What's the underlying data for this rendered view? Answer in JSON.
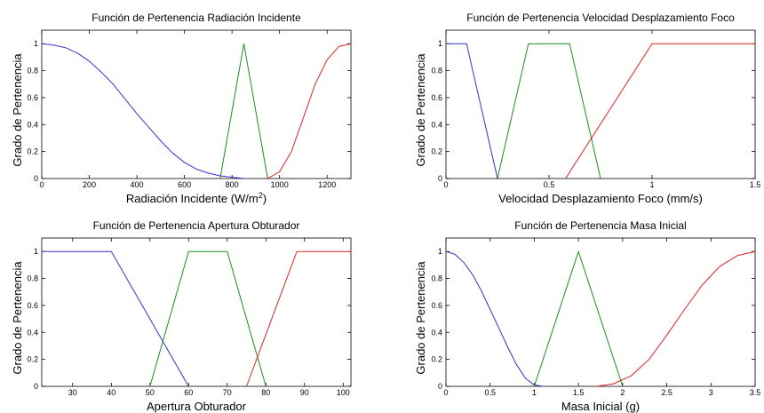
{
  "colors": {
    "low": "#3333cc",
    "mid": "#1f8a1f",
    "high": "#dd2222",
    "axis": "#000000"
  },
  "chart_data": [
    {
      "type": "line",
      "title": "Función de Pertenencia Radiación Incidente",
      "xlabel": "Radiación Incidente (W/m",
      "xlabel_sup": "2",
      "xlabel_suffix": ")",
      "ylabel": "Grado de Pertenencia",
      "xlim": [
        0,
        1300
      ],
      "ylim": [
        0,
        1.1
      ],
      "xticks": [
        0,
        200,
        400,
        600,
        800,
        1000,
        1200
      ],
      "yticks": [
        0,
        0.2,
        0.4,
        0.6,
        0.8,
        1
      ],
      "grid": false,
      "series": [
        {
          "color": "low",
          "x": [
            0,
            50,
            100,
            150,
            200,
            250,
            300,
            350,
            400,
            450,
            500,
            550,
            600,
            650,
            700,
            750,
            800,
            850
          ],
          "y": [
            1,
            0.99,
            0.97,
            0.93,
            0.87,
            0.79,
            0.7,
            0.59,
            0.48,
            0.38,
            0.28,
            0.19,
            0.12,
            0.07,
            0.04,
            0.02,
            0.01,
            0
          ]
        },
        {
          "color": "mid",
          "x": [
            750,
            850,
            950
          ],
          "y": [
            0,
            1,
            0
          ]
        },
        {
          "color": "high",
          "x": [
            950,
            1000,
            1050,
            1100,
            1150,
            1200,
            1250,
            1300
          ],
          "y": [
            0,
            0.05,
            0.2,
            0.45,
            0.7,
            0.88,
            0.98,
            1
          ]
        }
      ]
    },
    {
      "type": "line",
      "title": "Función de Pertenencia Velocidad Desplazamiento Foco",
      "xlabel": "Velocidad Desplazamiento Foco (mm/s)",
      "ylabel": "Grado de Pertenencia",
      "xlim": [
        0,
        1.5
      ],
      "ylim": [
        0,
        1.1
      ],
      "xticks": [
        0,
        0.5,
        1,
        1.5
      ],
      "yticks": [
        0,
        0.2,
        0.4,
        0.6,
        0.8,
        1
      ],
      "grid": false,
      "series": [
        {
          "color": "low",
          "x": [
            0,
            0.1,
            0.25
          ],
          "y": [
            1,
            1,
            0
          ]
        },
        {
          "color": "mid",
          "x": [
            0.25,
            0.4,
            0.6,
            0.75
          ],
          "y": [
            0,
            1,
            1,
            0
          ]
        },
        {
          "color": "high",
          "x": [
            0.58,
            1,
            1.5
          ],
          "y": [
            0,
            1,
            1
          ]
        }
      ]
    },
    {
      "type": "line",
      "title": "Función de Pertenencia Apertura Obturador",
      "xlabel": "Apertura Obturador",
      "ylabel": "Grado de Pertenencia",
      "xlim": [
        22,
        102
      ],
      "ylim": [
        0,
        1.1
      ],
      "xticks": [
        30,
        40,
        50,
        60,
        70,
        80,
        90,
        100
      ],
      "yticks": [
        0,
        0.2,
        0.4,
        0.6,
        0.8,
        1
      ],
      "grid": false,
      "series": [
        {
          "color": "low",
          "x": [
            22,
            40,
            60
          ],
          "y": [
            1,
            1,
            0
          ]
        },
        {
          "color": "mid",
          "x": [
            50,
            60,
            70,
            80
          ],
          "y": [
            0,
            1,
            1,
            0
          ]
        },
        {
          "color": "high",
          "x": [
            75,
            88,
            102
          ],
          "y": [
            0,
            1,
            1
          ]
        }
      ]
    },
    {
      "type": "line",
      "title": "Función de Pertenencia Masa Inicial",
      "xlabel": "Masa Inicial (g)",
      "ylabel": "Grado de Pertenencia",
      "xlim": [
        0,
        3.5
      ],
      "ylim": [
        0,
        1.1
      ],
      "xticks": [
        0,
        0.5,
        1,
        1.5,
        2,
        2.5,
        3,
        3.5
      ],
      "yticks": [
        0,
        0.2,
        0.4,
        0.6,
        0.8,
        1
      ],
      "grid": false,
      "series": [
        {
          "color": "low",
          "x": [
            0,
            0.1,
            0.2,
            0.3,
            0.4,
            0.5,
            0.6,
            0.7,
            0.8,
            0.9,
            1.0,
            1.1
          ],
          "y": [
            1,
            0.98,
            0.92,
            0.83,
            0.71,
            0.57,
            0.43,
            0.29,
            0.16,
            0.06,
            0.01,
            0
          ]
        },
        {
          "color": "mid",
          "x": [
            1,
            1.5,
            2
          ],
          "y": [
            0,
            1,
            0
          ]
        },
        {
          "color": "high",
          "x": [
            1.7,
            1.9,
            2.1,
            2.3,
            2.5,
            2.7,
            2.9,
            3.1,
            3.3,
            3.5
          ],
          "y": [
            0,
            0.02,
            0.08,
            0.2,
            0.38,
            0.57,
            0.75,
            0.89,
            0.97,
            1
          ]
        }
      ]
    }
  ]
}
